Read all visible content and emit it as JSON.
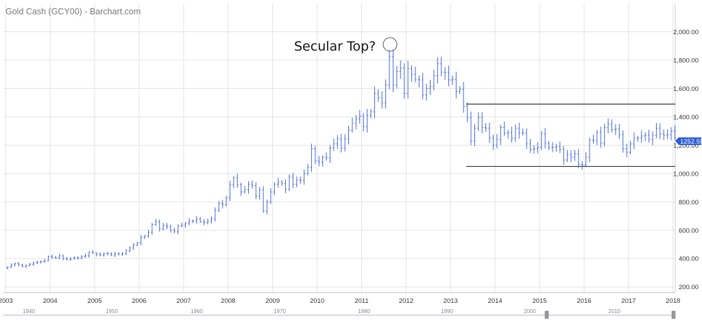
{
  "colors": {
    "bars": "#4466e0",
    "grid": "#e3e3e3",
    "badge": "#2a5bd7",
    "channel_lines": "#333333",
    "navigator_line": "#aab4d0"
  },
  "chart_data": {
    "type": "ohlc",
    "title": "Gold Cash (GCY00) - Barchart.com",
    "annotation": "Secular Top?",
    "last_price_label": "1252.55",
    "grid": true,
    "y_axis_side": "right",
    "ylim": [
      160,
      2200
    ],
    "yticks": [
      "200.00",
      "400.00",
      "600.00",
      "800.00",
      "1,000.00",
      "1,200.00",
      "1,400.00",
      "1,600.00",
      "1,800.00",
      "2,000.00"
    ],
    "ytick_values": [
      200,
      400,
      600,
      800,
      1000,
      1200,
      1400,
      1600,
      1800,
      2000
    ],
    "xlim": [
      2002.95,
      2018.05
    ],
    "xticks": [
      "2003",
      "2004",
      "2005",
      "2006",
      "2007",
      "2008",
      "2009",
      "2010",
      "2011",
      "2012",
      "2013",
      "2014",
      "2015",
      "2016",
      "2017",
      "2018"
    ],
    "xtick_values": [
      2003,
      2004,
      2005,
      2006,
      2007,
      2008,
      2009,
      2010,
      2011,
      2012,
      2013,
      2014,
      2015,
      2016,
      2017,
      2018
    ],
    "navigator_ticks": [
      "1940",
      "1950",
      "1960",
      "1970",
      "1980",
      "1990",
      "2000",
      "2010"
    ],
    "channel": {
      "from": 2013.35,
      "to": 2018.05,
      "upper": 1490,
      "lower": 1050
    },
    "series_monthly_close_by_year": {
      "start_year": 2003,
      "values": [
        [
          340,
          355,
          365,
          355,
          345,
          350,
          360,
          370,
          375,
          380,
          385,
          415
        ],
        [
          410,
          405,
          420,
          400,
          395,
          400,
          405,
          405,
          415,
          420,
          445,
          440
        ],
        [
          430,
          425,
          435,
          435,
          425,
          435,
          430,
          435,
          455,
          475,
          495,
          510
        ],
        [
          550,
          560,
          585,
          640,
          660,
          610,
          635,
          625,
          600,
          590,
          630,
          635
        ],
        [
          650,
          665,
          665,
          680,
          660,
          655,
          665,
          680,
          740,
          790,
          780,
          830
        ],
        [
          920,
          970,
          920,
          870,
          885,
          925,
          915,
          840,
          885,
          735,
          800,
          870
        ],
        [
          925,
          940,
          930,
          890,
          975,
          925,
          955,
          950,
          1000,
          1045,
          1175,
          1090
        ],
        [
          1080,
          1115,
          1110,
          1180,
          1210,
          1245,
          1180,
          1245,
          1305,
          1355,
          1385,
          1405
        ],
        [
          1330,
          1410,
          1435,
          1565,
          1535,
          1500,
          1625,
          1825,
          1625,
          1720,
          1745,
          1565
        ],
        [
          1740,
          1700,
          1665,
          1660,
          1555,
          1600,
          1615,
          1690,
          1775,
          1715,
          1710,
          1660
        ],
        [
          1665,
          1580,
          1595,
          1475,
          1395,
          1230,
          1320,
          1395,
          1325,
          1320,
          1250,
          1200
        ],
        [
          1240,
          1325,
          1285,
          1290,
          1250,
          1320,
          1285,
          1285,
          1210,
          1170,
          1175,
          1185
        ],
        [
          1280,
          1215,
          1185,
          1185,
          1190,
          1170,
          1095,
          1135,
          1115,
          1140,
          1065,
          1060
        ],
        [
          1115,
          1235,
          1235,
          1290,
          1215,
          1325,
          1350,
          1310,
          1315,
          1275,
          1175,
          1150
        ],
        [
          1210,
          1250,
          1250,
          1265,
          1270,
          1240,
          1270,
          1320,
          1280,
          1270,
          1275,
          1300
        ],
        [
          1252
        ]
      ]
    }
  }
}
